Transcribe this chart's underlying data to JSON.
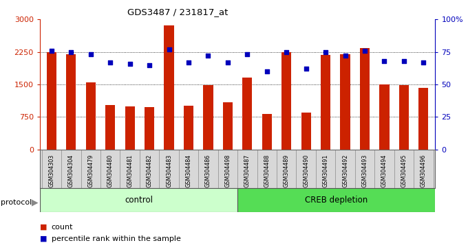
{
  "title": "GDS3487 / 231817_at",
  "categories": [
    "GSM304303",
    "GSM304304",
    "GSM304479",
    "GSM304480",
    "GSM304481",
    "GSM304482",
    "GSM304483",
    "GSM304484",
    "GSM304486",
    "GSM304498",
    "GSM304487",
    "GSM304488",
    "GSM304489",
    "GSM304490",
    "GSM304491",
    "GSM304492",
    "GSM304493",
    "GSM304494",
    "GSM304495",
    "GSM304496"
  ],
  "counts": [
    2250,
    2200,
    1540,
    1020,
    1000,
    980,
    2870,
    1010,
    1480,
    1090,
    1660,
    820,
    2250,
    850,
    2180,
    2190,
    2340,
    1500,
    1480,
    1420
  ],
  "percentile": [
    76,
    75,
    73,
    67,
    66,
    65,
    77,
    67,
    72,
    67,
    73,
    60,
    75,
    62,
    75,
    72,
    76,
    68,
    68,
    67
  ],
  "control_count": 10,
  "creb_count": 10,
  "bar_color": "#cc2200",
  "dot_color": "#0000bb",
  "ylim_left": [
    0,
    3000
  ],
  "ylim_right": [
    0,
    100
  ],
  "yticks_left": [
    0,
    750,
    1500,
    2250,
    3000
  ],
  "yticks_right": [
    0,
    25,
    50,
    75,
    100
  ],
  "yticklabels_right": [
    "0",
    "25",
    "50",
    "75",
    "100%"
  ],
  "control_color": "#ccffcc",
  "creb_color": "#55dd55",
  "bg_color": "#d8d8d8",
  "legend_count_label": "count",
  "legend_pct_label": "percentile rank within the sample",
  "protocol_label": "protocol",
  "control_label": "control",
  "creb_label": "CREB depletion"
}
